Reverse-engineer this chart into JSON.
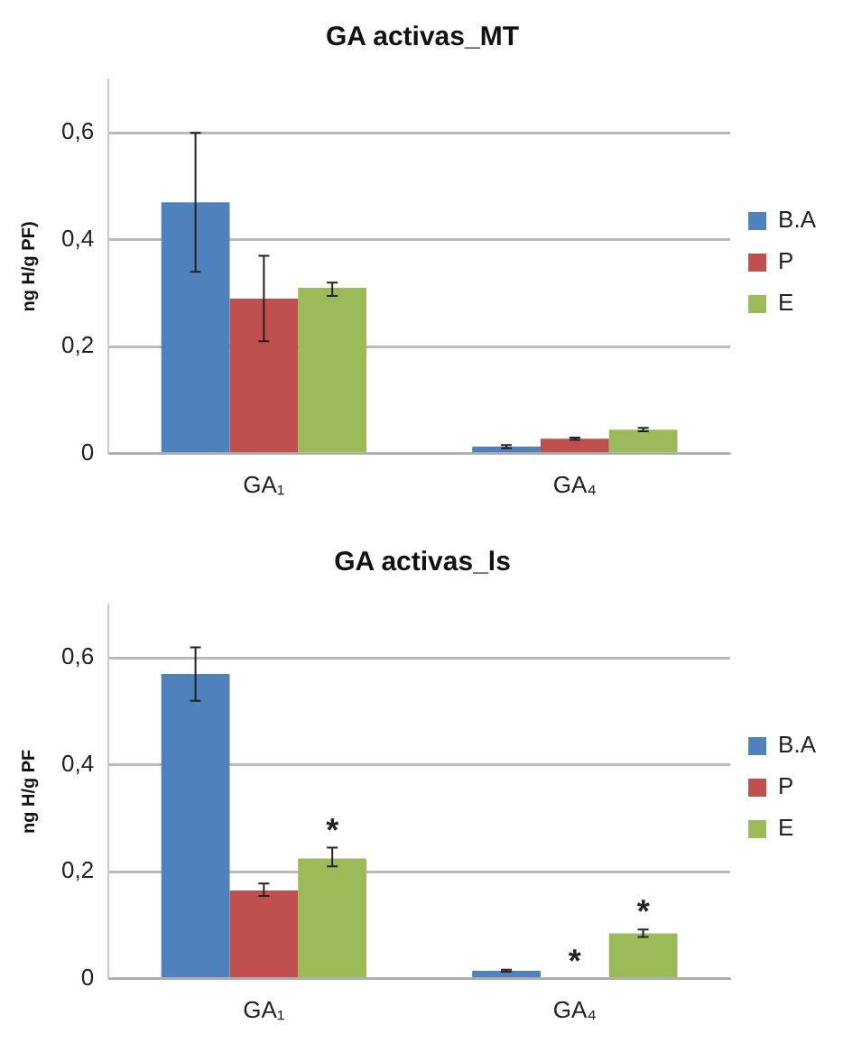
{
  "chart_data": [
    {
      "type": "bar",
      "title": "GA activas_MT",
      "ylabel": "ng H/g PF)",
      "categories": [
        "GA₁",
        "GA₄"
      ],
      "series": [
        {
          "name": "B.A",
          "color": "#4f81bd",
          "values": [
            0.47,
            0.013
          ],
          "errors": [
            [
              0.34,
              0.6
            ],
            [
              0.01,
              0.016
            ]
          ]
        },
        {
          "name": "P",
          "color": "#c0504d",
          "values": [
            0.29,
            0.028
          ],
          "errors": [
            [
              0.21,
              0.37
            ],
            [
              0.026,
              0.03
            ]
          ]
        },
        {
          "name": "E",
          "color": "#9bbb59",
          "values": [
            0.31,
            0.045
          ],
          "errors": [
            [
              0.295,
              0.32
            ],
            [
              0.042,
              0.048
            ]
          ]
        }
      ],
      "ylim": [
        0,
        0.7
      ],
      "yticks": [
        0,
        {
          "value": 0.2,
          "label": "0,2"
        },
        {
          "value": 0.4,
          "label": "0,4"
        },
        {
          "value": 0.6,
          "label": "0,6"
        }
      ],
      "grid": "y",
      "legend": "right"
    },
    {
      "type": "bar",
      "title": "GA activas_ls",
      "ylabel": "ng H/g PF",
      "categories": [
        "GA₁",
        "GA₄"
      ],
      "series": [
        {
          "name": "B.A",
          "color": "#4f81bd",
          "values": [
            0.57,
            0.015
          ],
          "errors": [
            [
              0.52,
              0.62
            ],
            [
              0.013,
              0.017
            ]
          ]
        },
        {
          "name": "P",
          "color": "#c0504d",
          "values": [
            0.165,
            0
          ],
          "errors": [
            [
              0.155,
              0.178
            ],
            null
          ]
        },
        {
          "name": "E",
          "color": "#9bbb59",
          "values": [
            0.225,
            0.085
          ],
          "errors": [
            [
              0.21,
              0.245
            ],
            [
              0.078,
              0.092
            ]
          ]
        }
      ],
      "ylim": [
        0,
        0.7
      ],
      "yticks": [
        0,
        {
          "value": 0.2,
          "label": "0,2"
        },
        {
          "value": 0.4,
          "label": "0,4"
        },
        {
          "value": 0.6,
          "label": "0,6"
        }
      ],
      "grid": "y",
      "legend": "right",
      "annotations": [
        "*",
        {
          "text": "*",
          "x": "GA₄",
          "y": 0
        },
        "*"
      ]
    }
  ]
}
